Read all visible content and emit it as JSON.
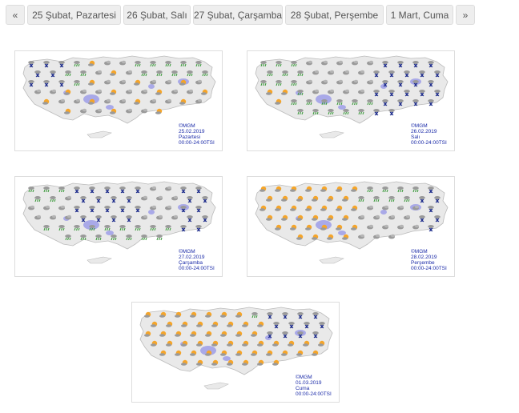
{
  "pagination": {
    "prev_label": "«",
    "next_label": "»",
    "tabs": [
      {
        "label": "25 Şubat, Pazartesi"
      },
      {
        "label": "26 Şubat, Salı"
      },
      {
        "label": "27 Şubat, Çarşamba"
      },
      {
        "label": "28 Şubat, Perşembe"
      },
      {
        "label": "1 Mart, Cuma"
      }
    ]
  },
  "maps": [
    {
      "copyright": "©MGM",
      "date": "25.02.2019",
      "day": "Pazartesi",
      "time": "00:00-24:00TSI"
    },
    {
      "copyright": "©MGM",
      "date": "26.02.2019",
      "day": "Salı",
      "time": "00:00-24:00TSI"
    },
    {
      "copyright": "©MGM",
      "date": "27.02.2019",
      "day": "Çarşamba",
      "time": "00:00-24:00TSI"
    },
    {
      "copyright": "©MGM",
      "date": "28.02.2019",
      "day": "Perşembe",
      "time": "00:00-24:00TSI"
    },
    {
      "copyright": "©MGM",
      "date": "01.03.2019",
      "day": "Cuma",
      "time": "00:00-24:00TSI"
    }
  ],
  "colors": {
    "land": "#e9e9e9",
    "lake": "#a9a9e8",
    "snow": "#1b2a8a",
    "rain": "#3f9b3f",
    "sun": "#f5a52a",
    "cloud": "#9a9a9a"
  }
}
